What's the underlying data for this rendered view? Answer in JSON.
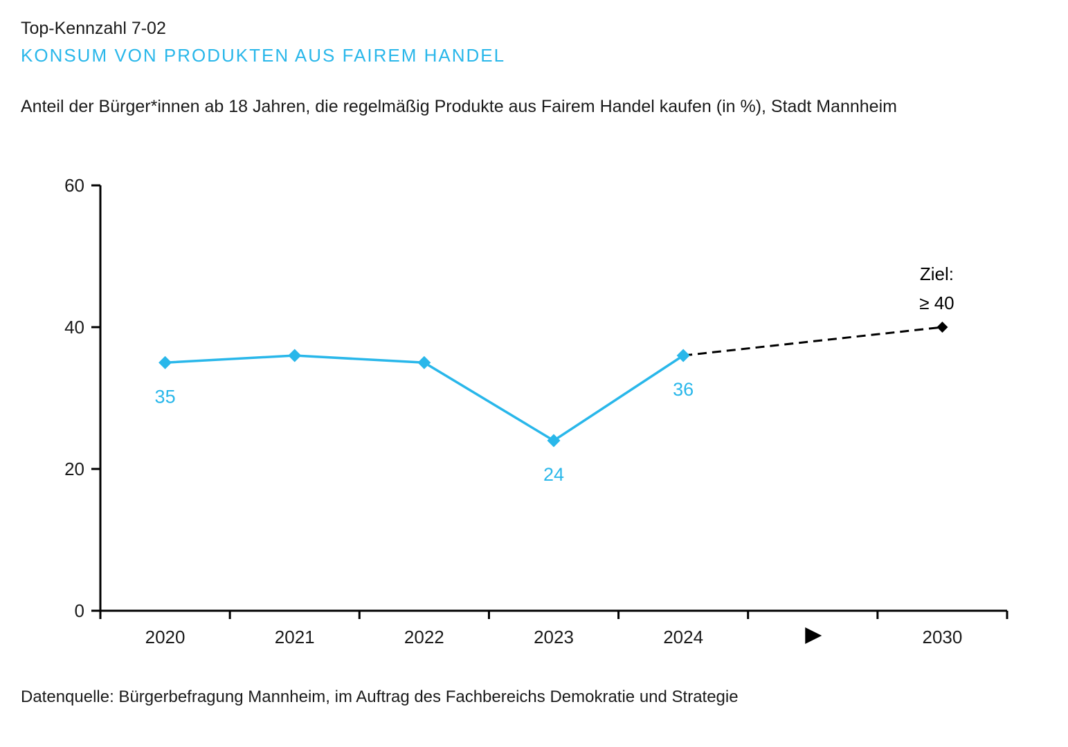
{
  "page": {
    "kennzahl": "Top-Kennzahl 7-02",
    "title": "KONSUM VON PRODUKTEN AUS FAIREM HANDEL",
    "subtitle": "Anteil der Bürger*innen ab 18 Jahren, die regelmäßig Produkte aus Fairem Handel kaufen (in %), Stadt Mannheim",
    "source": "Datenquelle: Bürgerbefragung Mannheim, im Auftrag des Fachbereichs Demokratie und Strategie"
  },
  "colors": {
    "accent": "#29b7ea",
    "text": "#1a1a1a",
    "axis": "#000000",
    "target": "#000000"
  },
  "chart_data": {
    "type": "line",
    "title": "KONSUM VON PRODUKTEN AUS FAIREM HANDEL",
    "subtitle": "Anteil der Bürger*innen ab 18 Jahren, die regelmäßig Produkte aus Fairem Handel kaufen (in %), Stadt Mannheim",
    "xlabel": "",
    "ylabel": "",
    "unit": "%",
    "ylim": [
      0,
      60
    ],
    "yticks": [
      0,
      20,
      40,
      60
    ],
    "grid": false,
    "legend": "none",
    "categories": [
      "2020",
      "2021",
      "2022",
      "2023",
      "2024",
      "▶",
      "2030"
    ],
    "axis_arrow_slot": 5,
    "series": [
      {
        "name": "",
        "slots": [
          0,
          1,
          2,
          3,
          4
        ],
        "values": [
          35,
          36,
          35,
          24,
          36
        ],
        "point_labels": [
          "35",
          "",
          "",
          "24",
          "36"
        ],
        "color": "#29b7ea",
        "marker": "diamond",
        "style": "solid"
      }
    ],
    "target": {
      "slot": 6,
      "value": 40,
      "annotation_lines": [
        "Ziel:",
        "≥ 40"
      ],
      "connector": {
        "from_slot": 4,
        "from_value": 36,
        "style": "dashed"
      },
      "color": "#000000",
      "marker": "diamond"
    }
  }
}
